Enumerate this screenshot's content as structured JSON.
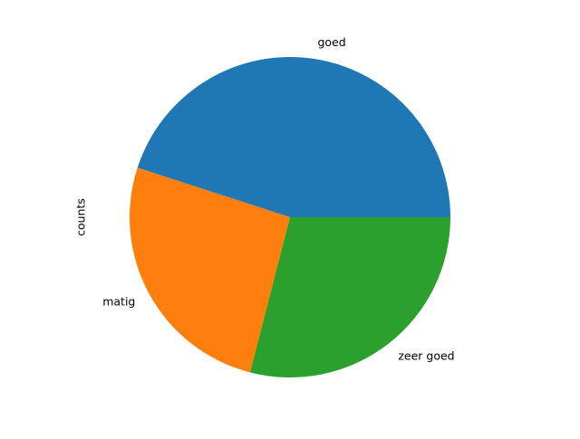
{
  "chart_data": {
    "type": "pie",
    "categories": [
      "goed",
      "matig",
      "zeer goed"
    ],
    "values": [
      45,
      26,
      29
    ],
    "colors": [
      "#1f77b4",
      "#ff7f0e",
      "#2ca02c"
    ],
    "ylabel": "counts",
    "start_angle_deg": 0,
    "direction": "counterclockwise"
  }
}
